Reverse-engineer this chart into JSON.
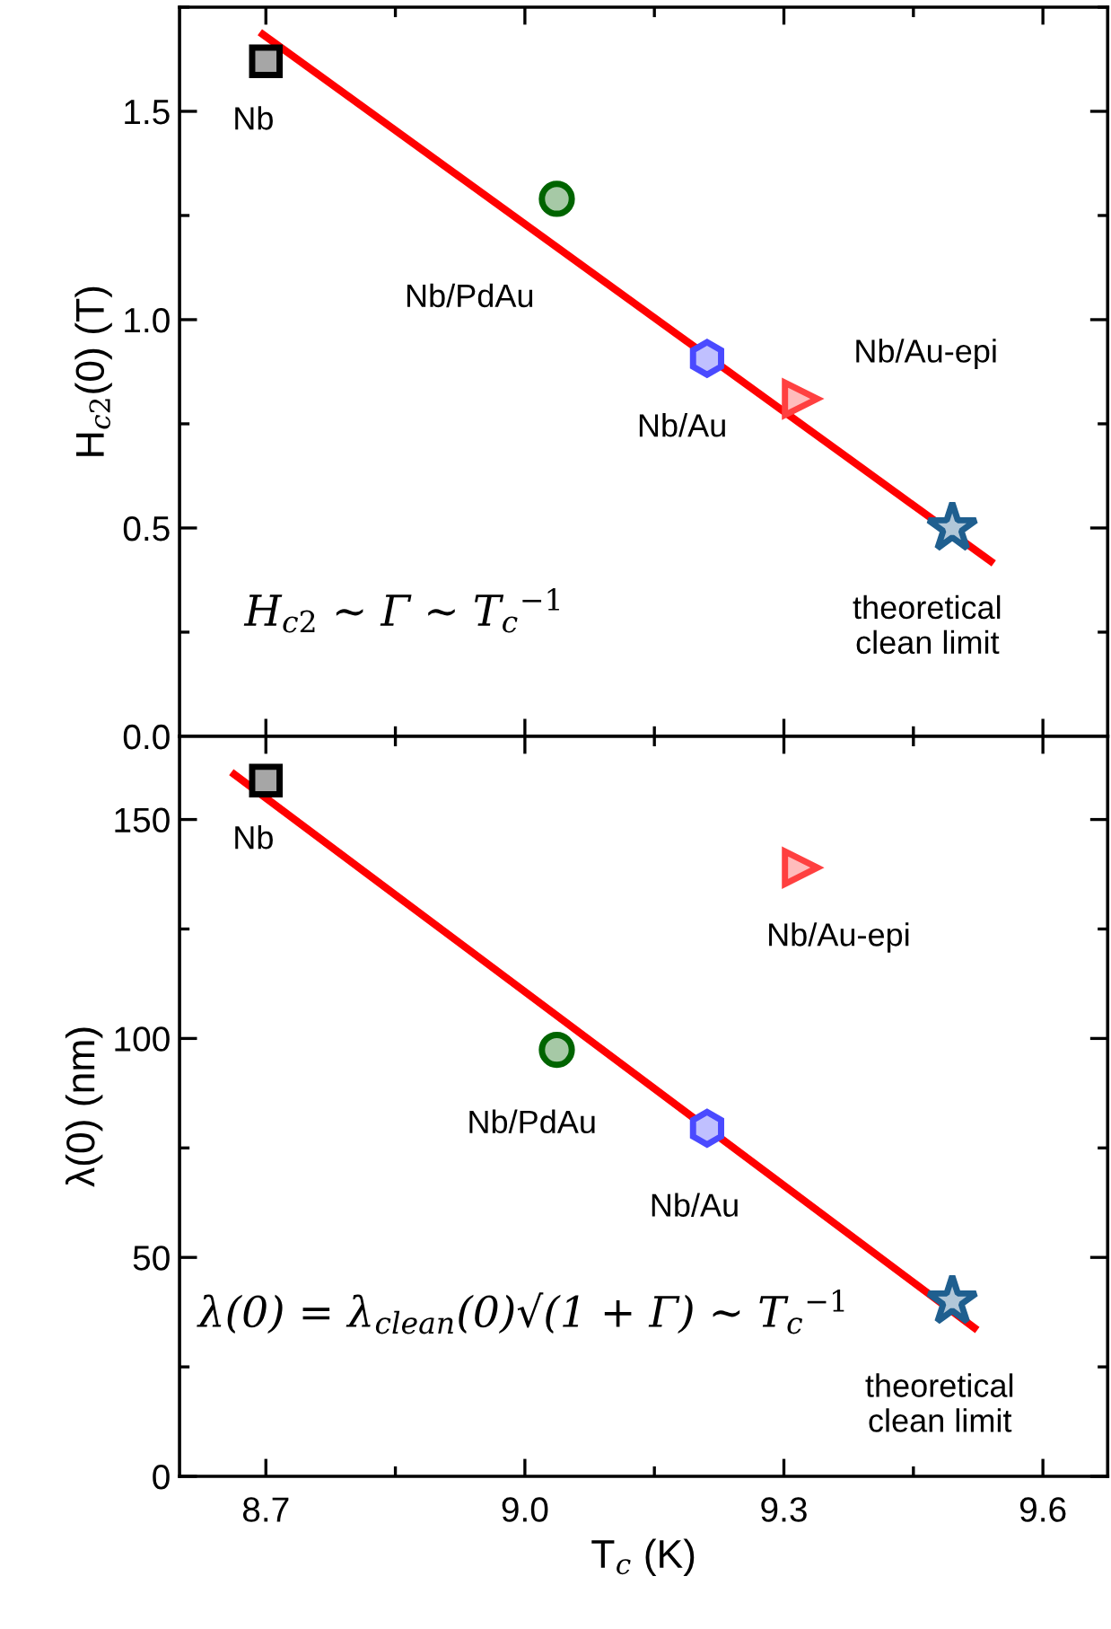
{
  "chart_data": [
    {
      "type": "scatter",
      "ylabel": "H$_{c2}$(0) (T)",
      "xlim": [
        8.6,
        9.675
      ],
      "xticks": [
        8.7,
        9.0,
        9.3,
        9.6
      ],
      "ylim": [
        0,
        1.75
      ],
      "yticks": [
        {
          "value": 0,
          "label": "0.0"
        },
        0.5,
        {
          "value": 1,
          "label": "1.0"
        },
        1.5
      ],
      "tick_labels": "y",
      "grid": false,
      "legend": false,
      "annotations": [
        "H$_{c2}$ ∼ Γ ∼ T$_{c}$$^{−1}$"
      ],
      "series": [
        {
          "type": "line",
          "color": "#ff0000",
          "x": [
            8.693,
            9.543
          ],
          "values": [
            1.69,
            0.415
          ]
        },
        {
          "name": "Nb",
          "color": "#000000",
          "marker": "square",
          "x": [
            8.7
          ],
          "values": [
            1.62
          ]
        },
        {
          "name": "Nb/PdAu",
          "color": "#006400",
          "marker": "circle",
          "x": [
            9.037
          ],
          "values": [
            1.29
          ]
        },
        {
          "name": "Nb/Au",
          "color": "#4a4aff",
          "x": [
            9.211
          ],
          "values": [
            0.907
          ]
        },
        {
          "name": "Nb/Au-epi",
          "color": "#ff4040",
          "marker": "triangle",
          "x": [
            9.32
          ],
          "values": [
            0.81
          ]
        },
        {
          "name": "theoretical\nclean limit",
          "color": "#1f5f8f",
          "marker": "star",
          "x": [
            9.495
          ],
          "values": [
            0.5
          ]
        }
      ]
    },
    {
      "type": "scatter",
      "xlabel": "T$_{c}$ (K)",
      "ylabel": "λ(0) (nm)",
      "xlim": [
        8.6,
        9.675
      ],
      "xticks": [
        8.7,
        {
          "value": 9,
          "label": "9.0"
        },
        9.3,
        9.6
      ],
      "ylim": [
        0,
        169
      ],
      "yticks": [
        0,
        50,
        100,
        150
      ],
      "grid": false,
      "legend": false,
      "annotations": [
        "λ(0) = λ$_{clean}$(0)√(1 + Γ) ∼ T$_{c}$$^{−1}$"
      ],
      "series": [
        {
          "type": "line",
          "color": "#ff0000",
          "x": [
            8.66,
            9.524
          ],
          "values": [
            160.8,
            33.4
          ]
        },
        {
          "name": "Nb",
          "color": "#000000",
          "marker": "square",
          "x": [
            8.7
          ],
          "values": [
            158.9
          ]
        },
        {
          "name": "Nb/PdAu",
          "color": "#006400",
          "marker": "circle",
          "x": [
            9.037
          ],
          "values": [
            97.4
          ]
        },
        {
          "name": "Nb/Au",
          "color": "#4a4aff",
          "x": [
            9.211
          ],
          "values": [
            79.5
          ]
        },
        {
          "name": "Nb/Au-epi",
          "color": "#ff4040",
          "marker": "triangle",
          "x": [
            9.32
          ],
          "values": [
            139
          ]
        },
        {
          "name": "theoretical\nclean limit",
          "color": "#1f5f8f",
          "marker": "star",
          "x": [
            9.495
          ],
          "values": [
            40
          ]
        }
      ]
    }
  ]
}
